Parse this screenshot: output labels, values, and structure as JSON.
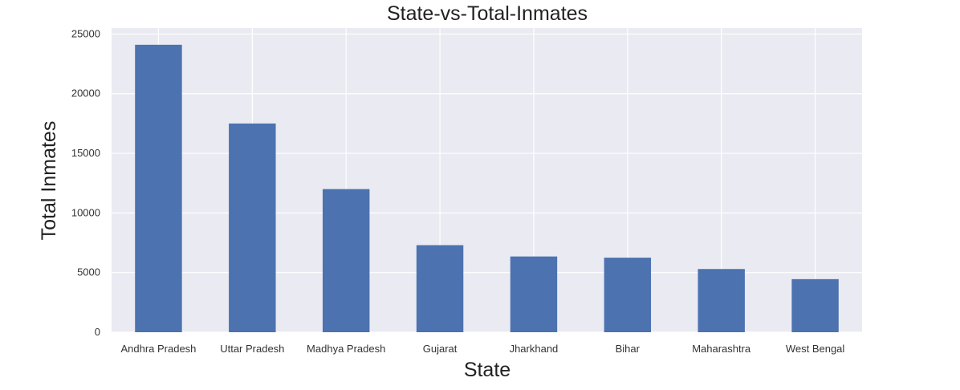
{
  "chart_data": {
    "type": "bar",
    "title": "State-vs-Total-Inmates",
    "xlabel": "State",
    "ylabel": "Total Inmates",
    "categories": [
      "Andhra Pradesh",
      "Uttar Pradesh",
      "Madhya Pradesh",
      "Gujarat",
      "Jharkhand",
      "Bihar",
      "Maharashtra",
      "West Bengal"
    ],
    "values": [
      24100,
      17500,
      12000,
      7300,
      6350,
      6250,
      5300,
      4450
    ],
    "ylim": [
      0,
      25500
    ],
    "yticks": [
      0,
      5000,
      10000,
      15000,
      20000,
      25000
    ],
    "grid": true,
    "bar_color": "#4c72b0",
    "background_color": "#eaeaf2"
  }
}
